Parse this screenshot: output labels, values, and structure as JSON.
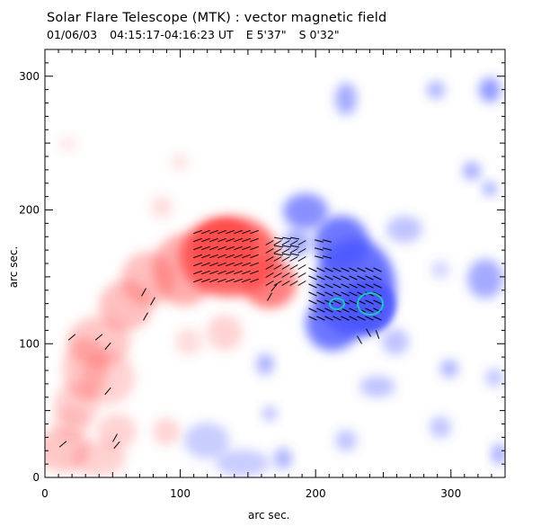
{
  "header": {
    "title": "Solar Flare Telescope (MTK) : vector magnetic field",
    "date": "01/06/03",
    "time_range": "04:15:17-04:16:23 UT",
    "east_offset": "E 5'37\"",
    "south_offset": "S 0'32\""
  },
  "axes": {
    "xlabel": "arc sec.",
    "ylabel": "arc sec.",
    "xlim": [
      0,
      340
    ],
    "ylim": [
      0,
      320
    ],
    "xticks": [
      0,
      100,
      200,
      300
    ],
    "yticks": [
      0,
      100,
      200,
      300
    ]
  },
  "colors": {
    "positive_polarity": "#ff4a4a",
    "negative_polarity": "#4a55ff",
    "vector_arrows": "#000000",
    "contour": "#18c8c0"
  }
}
